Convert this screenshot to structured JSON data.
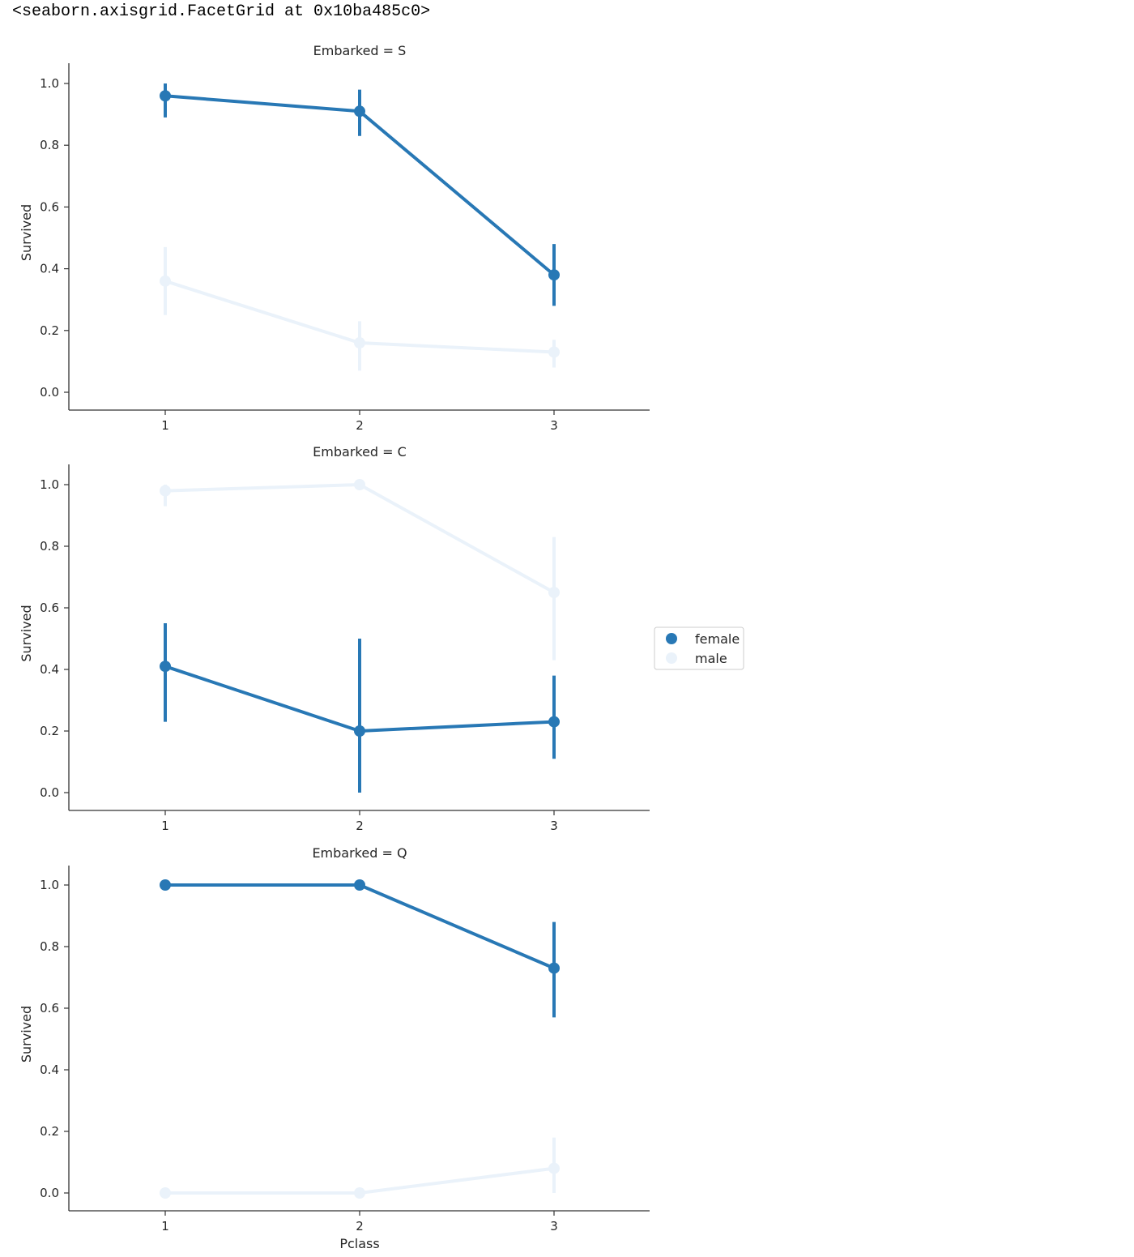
{
  "output": {
    "repr": "<seaborn.axisgrid.FacetGrid at 0x10ba485c0>"
  },
  "chart_data": {
    "type": "line",
    "kind": "pointplot",
    "facet_by": "Embarked",
    "x_label": "Pclass",
    "y_label": "Survived",
    "categories": [
      "1",
      "2",
      "3"
    ],
    "ylim": [
      -0.06,
      1.06
    ],
    "yticks": [
      "0.0",
      "0.2",
      "0.4",
      "0.6",
      "0.8",
      "1.0"
    ],
    "grid": false,
    "legend_placement": "center-right",
    "legend": [
      {
        "name": "female",
        "color": "#2878b5"
      },
      {
        "name": "male",
        "color": "#eaf2fa"
      }
    ],
    "facets": [
      {
        "title": "Embarked = S",
        "series": [
          {
            "name": "female",
            "color": "#2878b5",
            "values": [
              0.96,
              0.91,
              0.38
            ],
            "ci_low": [
              0.89,
              0.83,
              0.28
            ],
            "ci_high": [
              1.0,
              0.98,
              0.48
            ]
          },
          {
            "name": "male",
            "color": "#eaf2fa",
            "values": [
              0.36,
              0.16,
              0.13
            ],
            "ci_low": [
              0.25,
              0.07,
              0.08
            ],
            "ci_high": [
              0.47,
              0.23,
              0.17
            ]
          }
        ]
      },
      {
        "title": "Embarked = C",
        "series": [
          {
            "name": "female",
            "color": "#2878b5",
            "values": [
              0.41,
              0.2,
              0.23
            ],
            "ci_low": [
              0.23,
              0.0,
              0.11
            ],
            "ci_high": [
              0.55,
              0.5,
              0.38
            ]
          },
          {
            "name": "male",
            "color": "#eaf2fa",
            "values": [
              0.98,
              1.0,
              0.65
            ],
            "ci_low": [
              0.93,
              1.0,
              0.43
            ],
            "ci_high": [
              1.0,
              1.0,
              0.83
            ]
          }
        ]
      },
      {
        "title": "Embarked = Q",
        "series": [
          {
            "name": "female",
            "color": "#2878b5",
            "values": [
              1.0,
              1.0,
              0.73
            ],
            "ci_low": [
              1.0,
              1.0,
              0.57
            ],
            "ci_high": [
              1.0,
              1.0,
              0.88
            ]
          },
          {
            "name": "male",
            "color": "#eaf2fa",
            "values": [
              0.0,
              0.0,
              0.08
            ],
            "ci_low": [
              0.0,
              0.0,
              0.0
            ],
            "ci_high": [
              0.0,
              0.0,
              0.18
            ]
          }
        ]
      }
    ]
  }
}
